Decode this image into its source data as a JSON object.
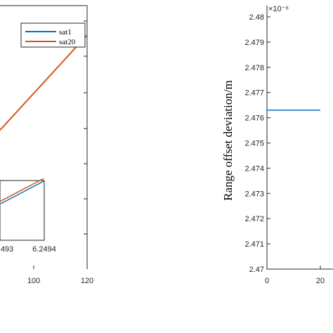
{
  "chart_data": [
    {
      "type": "line",
      "title": "",
      "xlabel": "",
      "ylabel": "",
      "x_ticks": [
        "100",
        "120"
      ],
      "xlim": [
        0,
        120
      ],
      "legend": {
        "placement": "top-right",
        "entries": [
          "sat1",
          "sat20"
        ]
      },
      "series": [
        {
          "name": "sat1",
          "color": "#0072BD",
          "x": [
            0,
            120
          ],
          "y": [
            null,
            null
          ]
        },
        {
          "name": "sat20",
          "color": "#D95319",
          "x": [
            0,
            120
          ],
          "y": [
            0.38,
            1.0
          ]
        }
      ],
      "inset": {
        "type": "line",
        "x_ticks": [
          "493",
          "6.2494"
        ],
        "series": [
          {
            "name": "sat1",
            "color": "#0072BD",
            "x": [
              0,
              1
            ],
            "y": [
              0.0,
              1.0
            ]
          },
          {
            "name": "sat20",
            "color": "#D95319",
            "x": [
              0,
              1
            ],
            "y": [
              0.12,
              1.12
            ]
          }
        ]
      }
    },
    {
      "type": "line",
      "title": "",
      "xlabel": "",
      "ylabel": "Range offset deviation/m",
      "y_exponent": "×10⁻⁶",
      "y_ticks": [
        "2.47",
        "2.471",
        "2.472",
        "2.473",
        "2.474",
        "2.475",
        "2.476",
        "2.477",
        "2.478",
        "2.479",
        "2.48"
      ],
      "ylim": [
        2.47,
        2.48
      ],
      "x_ticks": [
        "0",
        "20"
      ],
      "xlim": [
        0,
        20
      ],
      "series": [
        {
          "name": "",
          "color": "#0072BD",
          "x": [
            0,
            20
          ],
          "y": [
            2.4763,
            2.4763
          ]
        }
      ]
    }
  ]
}
